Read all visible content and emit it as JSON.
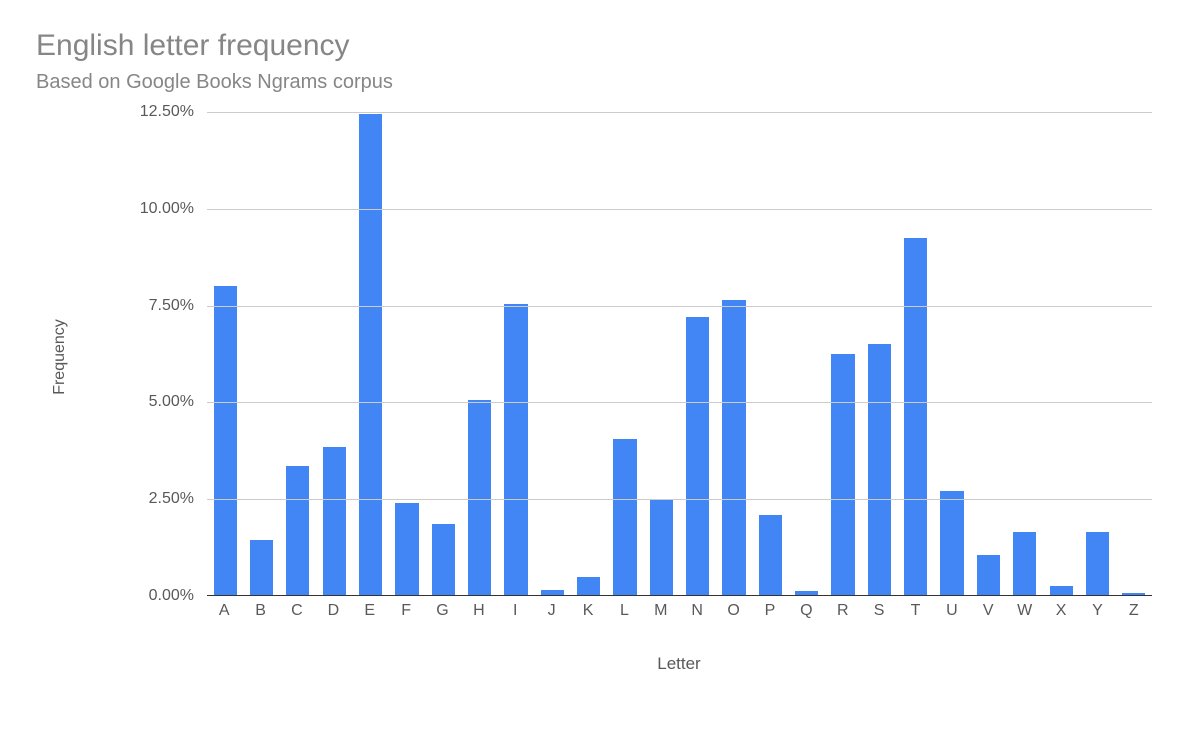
{
  "title": "English letter frequency",
  "subtitle": "Based on Google Books Ngrams corpus",
  "chart": {
    "type": "bar",
    "xlabel": "Letter",
    "ylabel": "Frequency",
    "background_color": "#ffffff",
    "grid_color": "#cccccc",
    "baseline_color": "#333333",
    "tick_font_color": "#595959",
    "tick_fontsize": 16,
    "title_color": "#868686",
    "title_fontsize": 30,
    "subtitle_fontsize": 20,
    "bar_color": "#4285f4",
    "bar_width_ratio": 0.64,
    "ylim": [
      0,
      12.5
    ],
    "yticks": [
      {
        "v": 0.0,
        "label": "0.00%"
      },
      {
        "v": 2.5,
        "label": "2.50%"
      },
      {
        "v": 5.0,
        "label": "5.00%"
      },
      {
        "v": 7.5,
        "label": "7.50%"
      },
      {
        "v": 10.0,
        "label": "10.00%"
      },
      {
        "v": 12.5,
        "label": "12.50%"
      }
    ],
    "categories": [
      "A",
      "B",
      "C",
      "D",
      "E",
      "F",
      "G",
      "H",
      "I",
      "J",
      "K",
      "L",
      "M",
      "N",
      "O",
      "P",
      "Q",
      "R",
      "S",
      "T",
      "U",
      "V",
      "W",
      "X",
      "Y",
      "Z"
    ],
    "values": [
      8.0,
      1.45,
      3.35,
      3.85,
      12.45,
      2.4,
      1.85,
      5.05,
      7.55,
      0.15,
      0.5,
      4.05,
      2.5,
      7.2,
      7.65,
      2.1,
      0.12,
      6.25,
      6.5,
      9.25,
      2.7,
      1.05,
      1.65,
      0.25,
      1.65,
      0.08
    ]
  }
}
